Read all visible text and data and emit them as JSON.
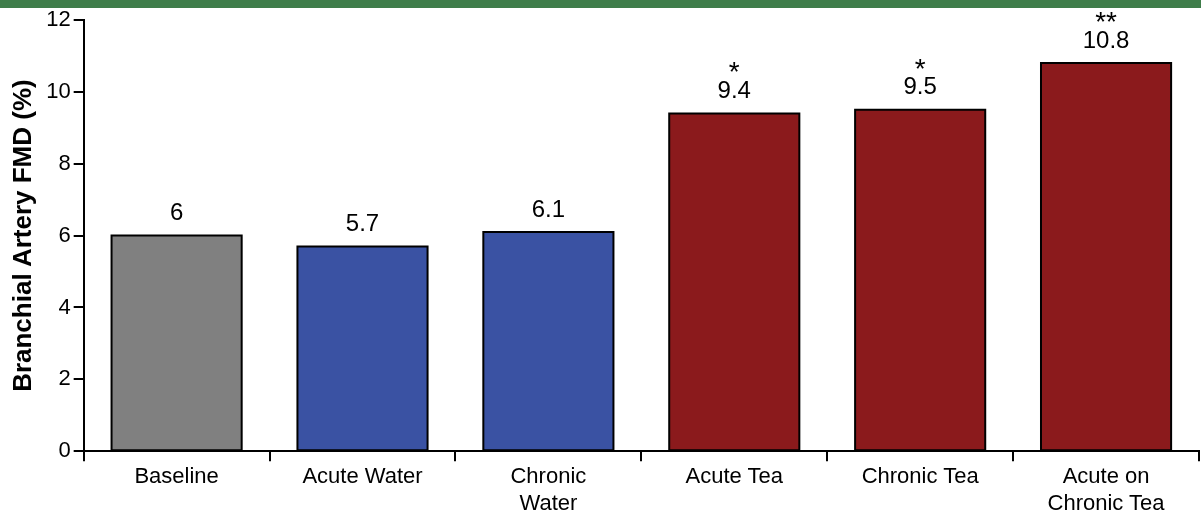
{
  "chart_data": {
    "type": "bar",
    "ylabel": "Branchial Artery FMD (%)",
    "categories": [
      "Baseline",
      "Acute Water",
      "Chronic Water",
      "Acute Tea",
      "Chronic Tea",
      "Acute on Chronic Tea"
    ],
    "values": [
      6,
      5.7,
      6.1,
      9.4,
      9.5,
      10.8
    ],
    "colors": [
      "#808080",
      "#3a52a3",
      "#3a52a3",
      "#8b1a1c",
      "#8b1a1c",
      "#8b1a1c"
    ],
    "ylim": [
      0,
      12
    ],
    "yticks": [
      0,
      2,
      4,
      6,
      8,
      10,
      12
    ],
    "grid": false,
    "legend": false,
    "data_labels": true,
    "annotations": [
      {
        "text": "*",
        "x": "Acute Tea",
        "y": 9.4
      },
      {
        "text": "*",
        "x": "Chronic Tea",
        "y": 9.5
      },
      {
        "text": "**",
        "x": "Acute on Chronic Tea",
        "y": 10.8
      }
    ]
  }
}
